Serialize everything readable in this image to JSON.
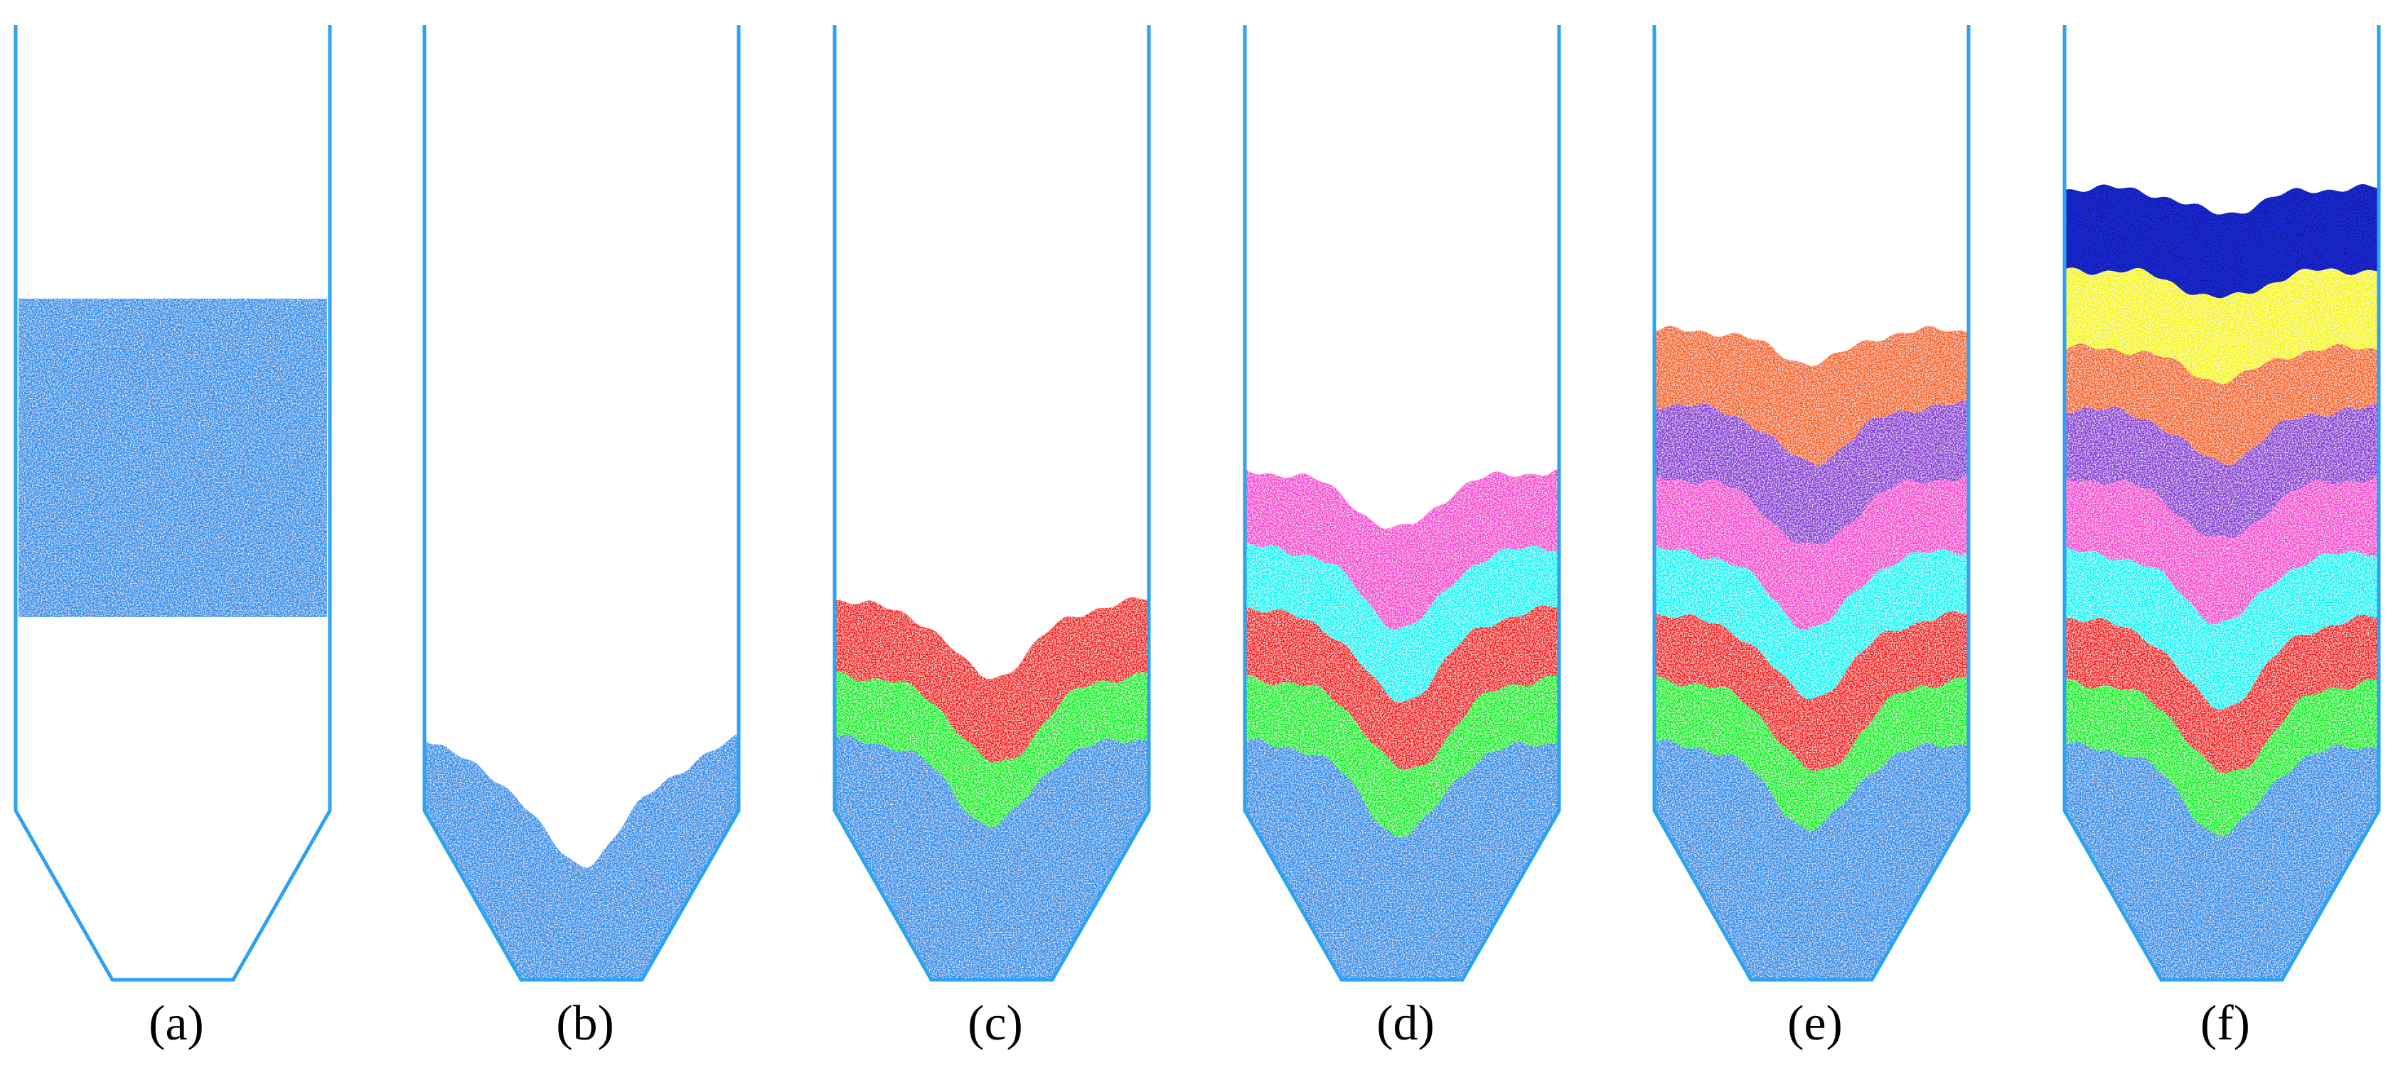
{
  "figure": {
    "panels": [
      {
        "id": "a",
        "label": "(a)",
        "stage": "initial particle block",
        "layers": []
      },
      {
        "id": "b",
        "label": "(b)",
        "stage": "after discharge",
        "layers": [
          {
            "color": "#2a8fe8"
          }
        ]
      },
      {
        "id": "c",
        "label": "(c)",
        "stage": "2 layers added",
        "layers": [
          {
            "color": "#2a8fe8"
          },
          {
            "color": "#00f01e"
          },
          {
            "color": "#f51414"
          }
        ]
      },
      {
        "id": "d",
        "label": "(d)",
        "stage": "4 layers added",
        "layers": [
          {
            "color": "#2a8fe8"
          },
          {
            "color": "#00f01e"
          },
          {
            "color": "#f51414"
          },
          {
            "color": "#00f5f5"
          },
          {
            "color": "#f545d2"
          }
        ]
      },
      {
        "id": "e",
        "label": "(e)",
        "stage": "6 layers added",
        "layers": [
          {
            "color": "#2a8fe8"
          },
          {
            "color": "#00f01e"
          },
          {
            "color": "#f51414"
          },
          {
            "color": "#00f5f5"
          },
          {
            "color": "#f545d2"
          },
          {
            "color": "#8a35d6"
          },
          {
            "color": "#f5631a"
          }
        ]
      },
      {
        "id": "f",
        "label": "(f)",
        "stage": "8 layers added",
        "layers": [
          {
            "color": "#2a8fe8"
          },
          {
            "color": "#00f01e"
          },
          {
            "color": "#f51414"
          },
          {
            "color": "#00f5f5"
          },
          {
            "color": "#f545d2"
          },
          {
            "color": "#8a35d6"
          },
          {
            "color": "#f5631a"
          },
          {
            "color": "#f5f500"
          },
          {
            "color": "#1a2ad6"
          }
        ]
      }
    ],
    "colors": {
      "silo_outline": "#2ba3f0",
      "initial_block": "#2a8fe8",
      "background": "#ffffff"
    }
  }
}
